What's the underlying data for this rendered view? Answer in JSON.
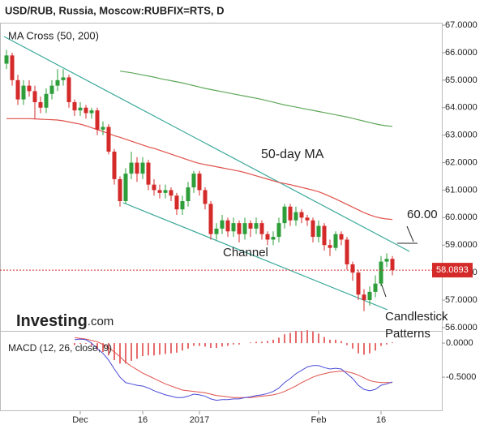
{
  "chart_data": {
    "type": "candlestick",
    "title": "USD/RUB, Russia, Moscow:RUBFIX=RTS, D",
    "categories": [
      null,
      null,
      null,
      null,
      null,
      null,
      null,
      null,
      null,
      null,
      null,
      null,
      null,
      "Dec",
      null,
      null,
      null,
      null,
      null,
      null,
      null,
      null,
      null,
      null,
      "16",
      null,
      null,
      null,
      null,
      null,
      null,
      null,
      null,
      null,
      "2017",
      null,
      null,
      null,
      null,
      null,
      null,
      null,
      null,
      null,
      null,
      null,
      null,
      null,
      null,
      null,
      null,
      null,
      null,
      null,
      null,
      "Feb",
      null,
      null,
      null,
      null,
      null,
      null,
      null,
      null,
      null,
      null,
      "16",
      null,
      null
    ],
    "ohlc": [
      [
        65.6,
        66.1,
        65.4,
        65.9
      ],
      [
        65.9,
        66.0,
        64.8,
        65.0
      ],
      [
        65.0,
        65.2,
        64.1,
        64.3
      ],
      [
        64.3,
        65.0,
        64.1,
        64.8
      ],
      [
        64.8,
        65.0,
        64.4,
        64.6
      ],
      [
        64.6,
        64.8,
        63.6,
        64.2
      ],
      [
        64.2,
        64.4,
        63.8,
        64.0
      ],
      [
        64.0,
        64.7,
        63.8,
        64.5
      ],
      [
        64.5,
        65.0,
        64.3,
        64.8
      ],
      [
        64.8,
        65.4,
        64.6,
        65.0
      ],
      [
        65.0,
        65.4,
        64.8,
        65.1
      ],
      [
        65.1,
        65.2,
        64.0,
        64.2
      ],
      [
        64.2,
        64.3,
        63.7,
        63.9
      ],
      [
        63.9,
        64.2,
        63.7,
        64.0
      ],
      [
        64.0,
        64.1,
        63.6,
        63.8
      ],
      [
        63.8,
        64.0,
        63.6,
        63.9
      ],
      [
        63.9,
        64.0,
        63.0,
        63.2
      ],
      [
        63.2,
        63.5,
        63.0,
        63.3
      ],
      [
        63.3,
        63.4,
        62.3,
        62.4
      ],
      [
        62.4,
        62.5,
        61.2,
        61.4
      ],
      [
        61.4,
        61.5,
        60.4,
        60.6
      ],
      [
        60.6,
        61.8,
        60.5,
        61.6
      ],
      [
        61.6,
        62.4,
        61.4,
        62.0
      ],
      [
        62.0,
        62.2,
        61.3,
        61.6
      ],
      [
        61.6,
        62.2,
        61.4,
        62.0
      ],
      [
        62.0,
        62.1,
        61.0,
        61.2
      ],
      [
        61.2,
        61.4,
        60.8,
        61.0
      ],
      [
        61.0,
        61.2,
        60.7,
        60.9
      ],
      [
        60.9,
        61.2,
        60.7,
        61.0
      ],
      [
        61.0,
        61.1,
        60.6,
        60.8
      ],
      [
        60.8,
        60.9,
        60.1,
        60.3
      ],
      [
        60.3,
        60.8,
        60.1,
        60.6
      ],
      [
        60.6,
        61.3,
        60.4,
        61.1
      ],
      [
        61.1,
        61.7,
        60.9,
        61.6
      ],
      [
        61.6,
        61.7,
        60.8,
        61.0
      ],
      [
        61.0,
        61.1,
        60.3,
        60.5
      ],
      [
        60.5,
        60.6,
        59.2,
        59.4
      ],
      [
        59.4,
        59.8,
        59.2,
        59.6
      ],
      [
        59.6,
        60.1,
        59.4,
        59.9
      ],
      [
        59.9,
        60.0,
        59.3,
        59.5
      ],
      [
        59.5,
        60.0,
        59.3,
        59.8
      ],
      [
        59.8,
        59.9,
        59.1,
        59.4
      ],
      [
        59.4,
        60.0,
        59.2,
        59.8
      ],
      [
        59.8,
        59.9,
        59.3,
        59.6
      ],
      [
        59.6,
        60.0,
        59.4,
        59.8
      ],
      [
        59.8,
        59.9,
        59.2,
        59.4
      ],
      [
        59.4,
        59.5,
        59.0,
        59.2
      ],
      [
        59.2,
        59.5,
        59.0,
        59.3
      ],
      [
        59.3,
        60.0,
        59.1,
        59.8
      ],
      [
        59.8,
        60.5,
        59.6,
        60.4
      ],
      [
        60.4,
        60.5,
        59.7,
        59.9
      ],
      [
        59.9,
        60.4,
        59.7,
        60.2
      ],
      [
        60.2,
        60.3,
        59.8,
        60.0
      ],
      [
        60.0,
        60.1,
        59.7,
        59.9
      ],
      [
        59.9,
        60.0,
        59.1,
        59.3
      ],
      [
        59.3,
        59.9,
        59.1,
        59.7
      ],
      [
        59.7,
        59.8,
        58.8,
        59.0
      ],
      [
        59.0,
        59.2,
        58.6,
        58.9
      ],
      [
        58.9,
        59.5,
        58.8,
        59.4
      ],
      [
        59.4,
        59.5,
        59.0,
        59.2
      ],
      [
        59.2,
        59.3,
        58.1,
        58.3
      ],
      [
        58.3,
        58.4,
        57.7,
        58.0
      ],
      [
        58.0,
        58.1,
        57.0,
        57.2
      ],
      [
        57.2,
        57.4,
        56.6,
        57.0
      ],
      [
        57.0,
        57.5,
        56.8,
        57.3
      ],
      [
        57.3,
        57.9,
        57.1,
        57.6
      ],
      [
        57.6,
        58.6,
        57.5,
        58.4
      ],
      [
        58.4,
        58.7,
        58.2,
        58.5
      ],
      [
        58.5,
        58.6,
        57.9,
        58.0893
      ]
    ],
    "up_color": "#2e9e3a",
    "down_color": "#d42a2a",
    "ylim": [
      55.88,
      67.09
    ],
    "yticks": [
      {
        "value": 56,
        "label": "56.0000"
      },
      {
        "value": 57,
        "label": "57.0000"
      },
      {
        "value": 58,
        "label": "58.0000"
      },
      {
        "value": 59,
        "label": "59.0000"
      },
      {
        "value": 60,
        "label": "60.0000"
      },
      {
        "value": 61,
        "label": "61.0000"
      },
      {
        "value": 62,
        "label": "62.0000"
      },
      {
        "value": 63,
        "label": "63.0000"
      },
      {
        "value": 64,
        "label": "64.0000"
      },
      {
        "value": 65,
        "label": "65.0000"
      },
      {
        "value": 66,
        "label": "66.0000"
      },
      {
        "value": 67,
        "label": "67.0000"
      }
    ],
    "ma50": {
      "color": "#e0504a",
      "values": [
        63.6,
        63.6,
        63.6,
        63.6,
        63.6,
        63.59,
        63.58,
        63.57,
        63.56,
        63.55,
        63.52,
        63.48,
        63.44,
        63.4,
        63.34,
        63.27,
        63.2,
        63.13,
        63.06,
        62.98,
        62.92,
        62.85,
        62.78,
        62.71,
        62.64,
        62.57,
        62.52,
        62.45,
        62.38,
        62.31,
        62.24,
        62.17,
        62.1,
        62.03,
        61.97,
        61.93,
        61.89,
        61.85,
        61.81,
        61.77,
        61.73,
        61.69,
        61.64,
        61.58,
        61.52,
        61.46,
        61.4,
        61.34,
        61.28,
        61.24,
        61.2,
        61.15,
        61.1,
        61.05,
        61.0,
        60.94,
        60.86,
        60.77,
        60.68,
        60.58,
        60.48,
        60.38,
        60.28,
        60.18,
        60.1,
        60.03,
        59.98,
        59.95,
        59.93
      ]
    },
    "ma200": {
      "color": "#5fa85a",
      "values": [
        null,
        null,
        null,
        null,
        null,
        null,
        null,
        null,
        null,
        null,
        null,
        null,
        null,
        null,
        null,
        null,
        null,
        null,
        null,
        null,
        65.33,
        65.3,
        65.27,
        65.23,
        65.19,
        65.15,
        65.11,
        65.06,
        65.02,
        64.98,
        64.94,
        64.9,
        64.85,
        64.8,
        64.75,
        64.7,
        64.66,
        64.62,
        64.58,
        64.54,
        64.5,
        64.46,
        64.42,
        64.38,
        64.34,
        64.3,
        64.25,
        64.2,
        64.15,
        64.1,
        64.06,
        64.02,
        63.98,
        63.94,
        63.9,
        63.86,
        63.82,
        63.78,
        63.74,
        63.7,
        63.66,
        63.61,
        63.56,
        63.51,
        63.46,
        63.41,
        63.37,
        63.34,
        63.32
      ]
    },
    "annotations": {
      "ma_cross": "MA Cross (50, 200)",
      "ma50": "50-day MA",
      "channel": "Channel",
      "level": "60.00",
      "candles": [
        "Candlestick",
        "Patterns"
      ]
    },
    "logo": [
      "Investing",
      ".com"
    ],
    "macd": {
      "label": "MACD (12, 26, close, 9)",
      "ylim": [
        -1.0,
        0.18
      ],
      "yticks": [
        {
          "value": 0,
          "label": "0.0000"
        },
        {
          "value": -0.5,
          "label": "-0.5000"
        }
      ],
      "macd": {
        "color": "#4a4ad8",
        "values": [
          null,
          null,
          null,
          null,
          null,
          null,
          null,
          null,
          null,
          null,
          null,
          null,
          0.05,
          0.06,
          0.05,
          0.0,
          -0.08,
          -0.15,
          -0.25,
          -0.38,
          -0.5,
          -0.58,
          -0.6,
          -0.62,
          -0.63,
          -0.66,
          -0.7,
          -0.73,
          -0.76,
          -0.78,
          -0.8,
          -0.8,
          -0.78,
          -0.75,
          -0.76,
          -0.78,
          -0.82,
          -0.84,
          -0.83,
          -0.83,
          -0.82,
          -0.82,
          -0.8,
          -0.79,
          -0.77,
          -0.76,
          -0.74,
          -0.71,
          -0.66,
          -0.58,
          -0.52,
          -0.45,
          -0.4,
          -0.35,
          -0.33,
          -0.33,
          -0.36,
          -0.38,
          -0.37,
          -0.38,
          -0.45,
          -0.52,
          -0.62,
          -0.68,
          -0.7,
          -0.68,
          -0.62,
          -0.6,
          -0.57
        ]
      },
      "signal": {
        "color": "#e0504a",
        "values": [
          null,
          null,
          null,
          null,
          null,
          null,
          null,
          null,
          null,
          null,
          null,
          null,
          0.08,
          0.07,
          0.06,
          0.04,
          0.02,
          -0.02,
          -0.07,
          -0.13,
          -0.2,
          -0.28,
          -0.34,
          -0.39,
          -0.44,
          -0.48,
          -0.52,
          -0.56,
          -0.6,
          -0.63,
          -0.66,
          -0.69,
          -0.7,
          -0.71,
          -0.72,
          -0.73,
          -0.75,
          -0.77,
          -0.78,
          -0.79,
          -0.8,
          -0.8,
          -0.8,
          -0.8,
          -0.79,
          -0.78,
          -0.77,
          -0.76,
          -0.74,
          -0.71,
          -0.67,
          -0.63,
          -0.58,
          -0.54,
          -0.5,
          -0.47,
          -0.45,
          -0.43,
          -0.42,
          -0.41,
          -0.42,
          -0.44,
          -0.47,
          -0.51,
          -0.55,
          -0.57,
          -0.58,
          -0.58,
          -0.58
        ]
      },
      "histogram": {
        "color": "#e86a6a",
        "values": [
          null,
          null,
          null,
          null,
          null,
          null,
          null,
          null,
          null,
          null,
          null,
          null,
          -0.03,
          -0.01,
          -0.01,
          -0.04,
          -0.1,
          -0.13,
          -0.18,
          -0.25,
          -0.3,
          -0.3,
          -0.26,
          -0.23,
          -0.19,
          -0.18,
          -0.18,
          -0.17,
          -0.16,
          -0.15,
          -0.14,
          -0.11,
          -0.08,
          -0.04,
          -0.04,
          -0.05,
          -0.07,
          -0.07,
          -0.05,
          -0.04,
          -0.02,
          -0.02,
          0.0,
          0.01,
          0.02,
          0.02,
          0.03,
          0.05,
          0.08,
          0.13,
          0.15,
          0.18,
          0.18,
          0.19,
          0.17,
          0.14,
          0.09,
          0.05,
          0.05,
          0.03,
          -0.03,
          -0.08,
          -0.15,
          -0.17,
          -0.15,
          -0.11,
          -0.04,
          -0.02,
          0.01
        ]
      }
    }
  }
}
